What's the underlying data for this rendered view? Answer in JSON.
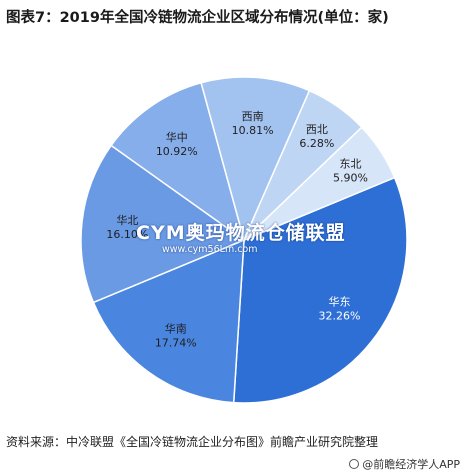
{
  "chart_data": {
    "type": "pie",
    "title": "图表7：2019年全国冷链物流企业区域分布情况(单位：家)",
    "slices": [
      {
        "label": "华东",
        "value_label": "32.26%",
        "value": 32.26,
        "color": "#2e6fd6"
      },
      {
        "label": "华南",
        "value_label": "17.74%",
        "value": 17.74,
        "color": "#4a86e0"
      },
      {
        "label": "华北",
        "value_label": "16.10%",
        "value": 16.1,
        "color": "#6a9ae4"
      },
      {
        "label": "华中",
        "value_label": "10.92%",
        "value": 10.92,
        "color": "#86aeea"
      },
      {
        "label": "西南",
        "value_label": "10.81%",
        "value": 10.81,
        "color": "#a2c2ef"
      },
      {
        "label": "西北",
        "value_label": "6.28%",
        "value": 6.28,
        "color": "#bed5f4"
      },
      {
        "label": "东北",
        "value_label": "5.90%",
        "value": 5.9,
        "color": "#d6e5f8"
      }
    ]
  },
  "watermark": {
    "logo_text": "CYM奥玛物流仓储联盟",
    "logo_sub": "www.cym56Lm.com"
  },
  "footer": {
    "source": "资料来源：中冷联盟《全国冷链物流企业分布图》前瞻产业研究院整理",
    "brand": "@前瞻经济学人APP"
  }
}
